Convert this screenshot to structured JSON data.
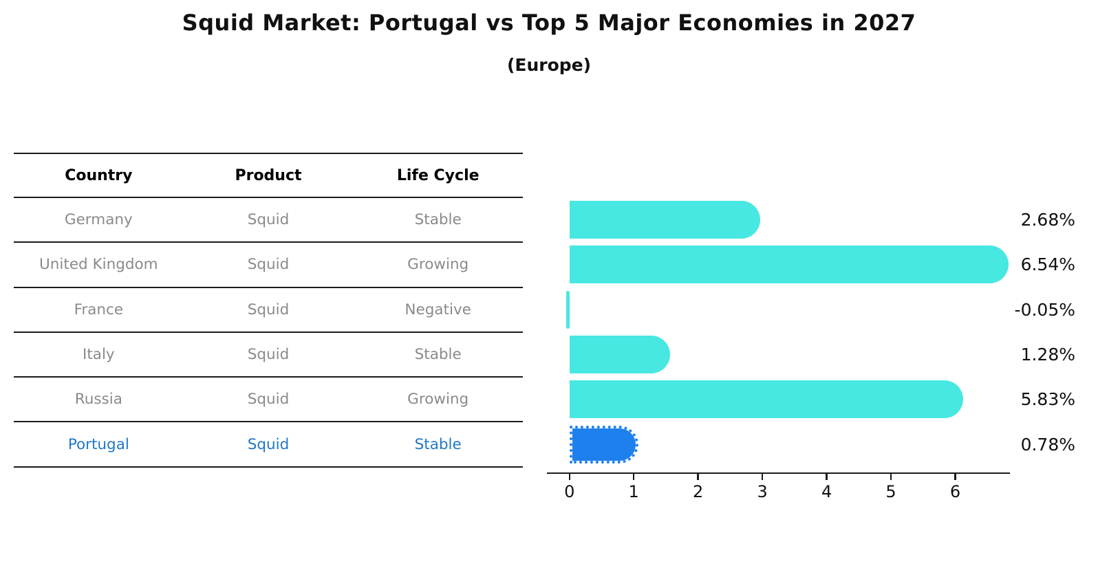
{
  "header": {
    "title": "Squid Market: Portugal vs Top 5 Major Economies in 2027",
    "subtitle": "(Europe)"
  },
  "table": {
    "columns": [
      "Country",
      "Product",
      "Life Cycle"
    ],
    "rows": [
      {
        "country": "Germany",
        "product": "Squid",
        "life_cycle": "Stable",
        "highlighted": false
      },
      {
        "country": "United Kingdom",
        "product": "Squid",
        "life_cycle": "Growing",
        "highlighted": false
      },
      {
        "country": "France",
        "product": "Squid",
        "life_cycle": "Negative",
        "highlighted": false
      },
      {
        "country": "Italy",
        "product": "Squid",
        "life_cycle": "Stable",
        "highlighted": false
      },
      {
        "country": "Russia",
        "product": "Squid",
        "life_cycle": "Growing",
        "highlighted": true
      }
    ],
    "highlight_row": {
      "country": "Portugal",
      "product": "Squid",
      "life_cycle": "Stable"
    }
  },
  "chart_data": {
    "type": "bar",
    "orientation": "horizontal",
    "title": "Squid Market: Portugal vs Top 5 Major Economies in 2027",
    "subtitle": "(Europe)",
    "categories": [
      "Germany",
      "United Kingdom",
      "France",
      "Italy",
      "Russia",
      "Portugal"
    ],
    "values": [
      2.68,
      6.54,
      -0.05,
      1.28,
      5.83,
      0.78
    ],
    "value_labels": [
      "2.68%",
      "6.54%",
      "-0.05%",
      "1.28%",
      "5.83%",
      "0.78%"
    ],
    "highlight_index": 5,
    "xticks": [
      0,
      1,
      2,
      3,
      4,
      5,
      6
    ],
    "xlim": [
      -0.35,
      6.85
    ],
    "grid": false,
    "legend": false,
    "bar_color": "#46e8e1",
    "highlight_bar_color": "#1e80ec",
    "highlight_text_color": "#1f78c8",
    "row_text_color": "#8a8a8a"
  }
}
